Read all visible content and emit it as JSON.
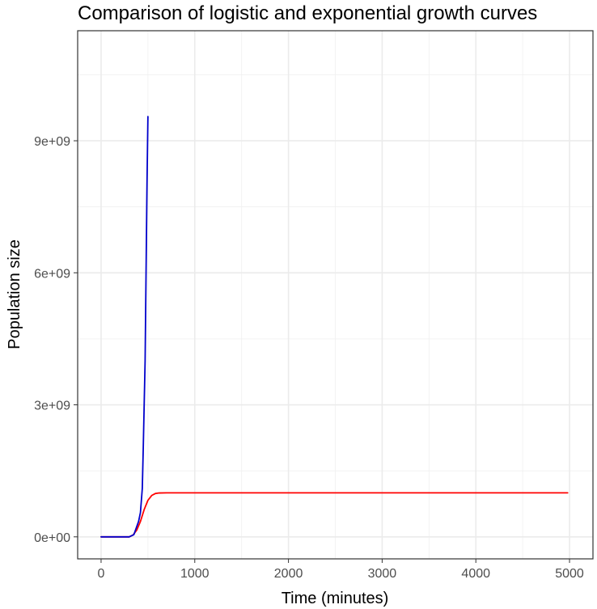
{
  "chart_data": {
    "type": "line",
    "title": "Comparison of logistic and exponential growth curves",
    "xlabel": "Time (minutes)",
    "ylabel": "Population size",
    "xlim": [
      -250,
      5250
    ],
    "ylim": [
      -500000000,
      11500000000
    ],
    "xticks": [
      0,
      1000,
      2000,
      3000,
      4000,
      5000
    ],
    "xtick_labels": [
      "0",
      "1000",
      "2000",
      "3000",
      "4000",
      "5000"
    ],
    "yticks": [
      0,
      3000000000,
      6000000000,
      9000000000
    ],
    "ytick_labels": [
      "0e+00",
      "3e+09",
      "6e+09",
      "9e+09"
    ],
    "grid": true,
    "legend": "none",
    "series": [
      {
        "color": "#0000cc",
        "x": [
          0,
          100,
          200,
          300,
          350,
          400,
          420,
          440,
          450,
          460,
          470,
          480,
          490,
          500
        ],
        "y": [
          0,
          0,
          0,
          0,
          50000000,
          350000000,
          550000000,
          1100000000,
          2000000000,
          3000000000,
          4000000000,
          6000000000,
          8000000000,
          9550000000
        ]
      },
      {
        "color": "#ff0000",
        "x": [
          0,
          100,
          200,
          300,
          340,
          380,
          420,
          460,
          500,
          540,
          580,
          620,
          700,
          800,
          1000,
          2000,
          3000,
          4000,
          4980
        ],
        "y": [
          0,
          0,
          0,
          0,
          40000000,
          150000000,
          350000000,
          620000000,
          830000000,
          940000000,
          985000000,
          997000000,
          1000000000,
          1000000000,
          1000000000,
          1000000000,
          1000000000,
          1000000000,
          1000000000
        ]
      }
    ]
  }
}
